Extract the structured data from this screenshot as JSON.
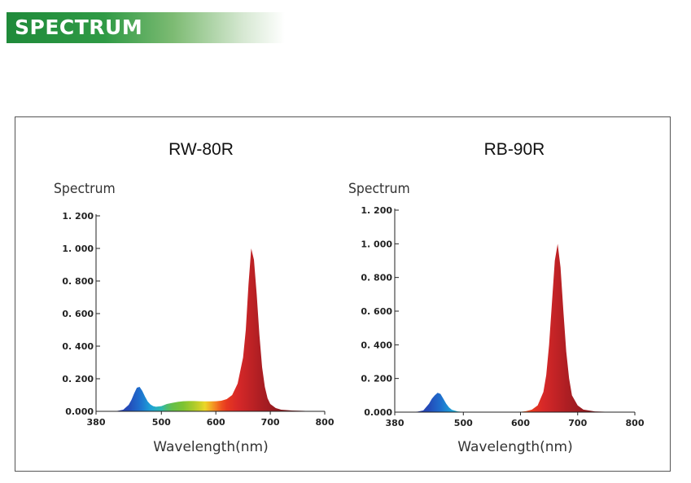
{
  "header": {
    "title": "SPECTRUM"
  },
  "chart_data": [
    {
      "type": "area",
      "title": "RW-80R",
      "ylabel": "Spectrum",
      "xlabel": "Wavelength(nm)",
      "xlim": [
        380,
        800
      ],
      "ylim": [
        0,
        1.2
      ],
      "x_ticks": [
        "380",
        "500",
        "600",
        "700",
        "800"
      ],
      "y_ticks": [
        "0.000",
        "0. 200",
        "0. 400",
        "0. 600",
        "0. 800",
        "1. 000",
        "1. 200"
      ],
      "series": [
        {
          "x": [
            380,
            410,
            420,
            430,
            440,
            445,
            450,
            455,
            460,
            465,
            470,
            475,
            480,
            485,
            490,
            500,
            510,
            520,
            530,
            540,
            550,
            560,
            570,
            580,
            590,
            600,
            610,
            620,
            630,
            640,
            650,
            655,
            660,
            665,
            670,
            675,
            680,
            685,
            690,
            695,
            700,
            710,
            720,
            740,
            760,
            780,
            800
          ],
          "values": [
            0,
            0,
            0.003,
            0.01,
            0.04,
            0.07,
            0.11,
            0.145,
            0.15,
            0.125,
            0.09,
            0.06,
            0.042,
            0.032,
            0.028,
            0.032,
            0.045,
            0.052,
            0.058,
            0.062,
            0.063,
            0.063,
            0.062,
            0.061,
            0.061,
            0.062,
            0.065,
            0.075,
            0.1,
            0.17,
            0.33,
            0.5,
            0.78,
            1.0,
            0.93,
            0.72,
            0.47,
            0.27,
            0.15,
            0.08,
            0.045,
            0.02,
            0.01,
            0.005,
            0.003,
            0.001,
            0
          ]
        }
      ]
    },
    {
      "type": "area",
      "title": "RB-90R",
      "ylabel": "Spectrum",
      "xlabel": "Wavelength(nm)",
      "xlim": [
        380,
        800
      ],
      "ylim": [
        0,
        1.2
      ],
      "x_ticks": [
        "380",
        "500",
        "600",
        "700",
        "800"
      ],
      "y_ticks": [
        "0.000",
        "0. 200",
        "0. 400",
        "0. 600",
        "0. 800",
        "1. 000",
        "1. 200"
      ],
      "series": [
        {
          "x": [
            380,
            405,
            420,
            430,
            435,
            440,
            445,
            450,
            455,
            460,
            465,
            470,
            475,
            480,
            490,
            500,
            520,
            560,
            600,
            610,
            620,
            630,
            640,
            645,
            650,
            655,
            660,
            665,
            670,
            675,
            680,
            685,
            690,
            700,
            710,
            730,
            760,
            800
          ],
          "values": [
            0,
            0,
            0.003,
            0.01,
            0.03,
            0.05,
            0.08,
            0.1,
            0.115,
            0.108,
            0.08,
            0.05,
            0.028,
            0.014,
            0.004,
            0.001,
            0,
            0,
            0.002,
            0.006,
            0.015,
            0.04,
            0.12,
            0.22,
            0.4,
            0.65,
            0.9,
            1.0,
            0.86,
            0.6,
            0.36,
            0.2,
            0.1,
            0.04,
            0.015,
            0.004,
            0.001,
            0
          ]
        }
      ]
    }
  ]
}
